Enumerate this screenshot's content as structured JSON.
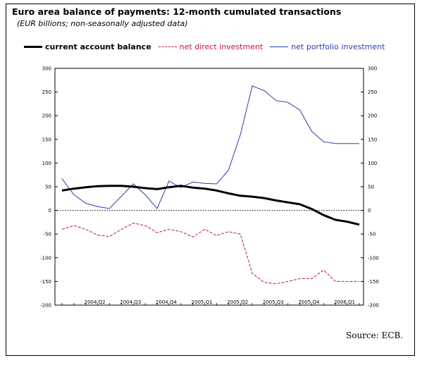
{
  "title": "Euro area balance of payments: 12-month cumulated transactions",
  "subtitle": "(EUR billions; non-seasonally adjusted data)",
  "source": "Source: ECB.",
  "legend": {
    "cab": "current account balance",
    "fdi": "net direct investment",
    "portfolio": "net portfolio investment"
  },
  "colors": {
    "cab": "#000000",
    "fdi": "#c0143c",
    "portfolio": "#2a3cb0"
  },
  "chart_data": {
    "type": "line",
    "title": "Euro area balance of payments: 12-month cumulated transactions",
    "subtitle": "(EUR billions; non-seasonally adjusted data)",
    "xlabel": "",
    "ylabel": "",
    "ylim": [
      -200,
      300
    ],
    "yticks": [
      300,
      250,
      200,
      150,
      100,
      50,
      0,
      -50,
      -100,
      -150,
      -200
    ],
    "xticks": [
      "2004 Q2",
      "2004 Q3",
      "2004 Q4",
      "2005 Q1",
      "2005 Q2",
      "2005 Q3",
      "2005 Q4",
      "2006 Q1"
    ],
    "x": [
      "2004-02",
      "2004-03",
      "2004-04",
      "2004-05",
      "2004-06",
      "2004-07",
      "2004-08",
      "2004-09",
      "2004-10",
      "2004-11",
      "2004-12",
      "2005-01",
      "2005-02",
      "2005-03",
      "2005-04",
      "2005-05",
      "2005-06",
      "2005-07",
      "2005-08",
      "2005-09",
      "2005-10",
      "2005-11",
      "2005-12",
      "2006-01",
      "2006-02",
      "2006-03"
    ],
    "zero_line": "dotted",
    "grid": false,
    "legend_position": "top",
    "series": [
      {
        "name": "current account balance",
        "key": "cab",
        "values": [
          42,
          46,
          49,
          51,
          52,
          52,
          50,
          47,
          45,
          49,
          52,
          48,
          46,
          42,
          36,
          31,
          29,
          26,
          21,
          17,
          13,
          3,
          -10,
          -20,
          -24,
          -30
        ]
      },
      {
        "name": "net direct investment",
        "key": "fdi",
        "values": [
          -40,
          -32,
          -40,
          -52,
          -55,
          -40,
          -27,
          -32,
          -47,
          -40,
          -45,
          -56,
          -40,
          -53,
          -45,
          -50,
          -133,
          -152,
          -155,
          -150,
          -144,
          -144,
          -126,
          -150,
          -150,
          -150
        ]
      },
      {
        "name": "net portfolio investment",
        "key": "portfolio",
        "values": [
          67,
          33,
          15,
          8,
          4,
          30,
          56,
          33,
          4,
          62,
          48,
          60,
          57,
          56,
          85,
          160,
          263,
          253,
          232,
          228,
          212,
          167,
          145,
          141,
          141,
          141
        ]
      }
    ]
  }
}
